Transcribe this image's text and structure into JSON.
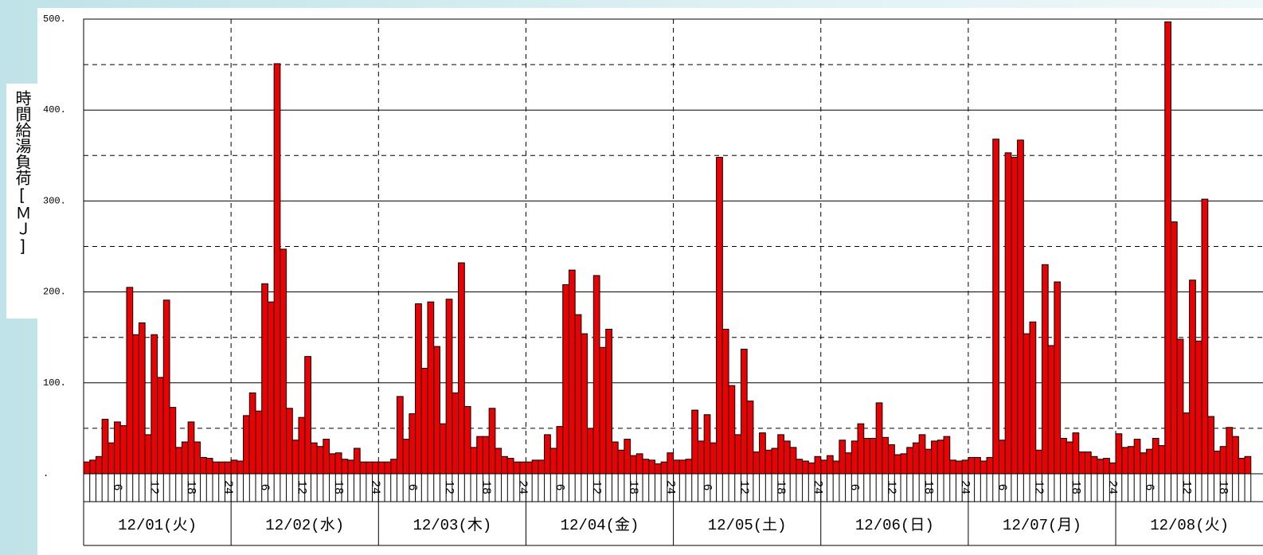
{
  "chart_data": {
    "type": "bar",
    "y_label": "時間給湯負荷[ＭＪ]",
    "days": [
      "12/01(火)",
      "12/02(水)",
      "12/03(木)",
      "12/04(金)",
      "12/05(土)",
      "12/06(日)",
      "12/07(月)",
      "12/08(火)"
    ],
    "categories": [
      null,
      null,
      null,
      null,
      null,
      "6",
      null,
      null,
      null,
      null,
      null,
      "12",
      null,
      null,
      null,
      null,
      null,
      "18",
      null,
      null,
      null,
      null,
      null,
      "24",
      null,
      null,
      null,
      null,
      null,
      "6",
      null,
      null,
      null,
      null,
      null,
      "12",
      null,
      null,
      null,
      null,
      null,
      "18",
      null,
      null,
      null,
      null,
      null,
      "24",
      null,
      null,
      null,
      null,
      null,
      "6",
      null,
      null,
      null,
      null,
      null,
      "12",
      null,
      null,
      null,
      null,
      null,
      "18",
      null,
      null,
      null,
      null,
      null,
      "24",
      null,
      null,
      null,
      null,
      null,
      "6",
      null,
      null,
      null,
      null,
      null,
      "12",
      null,
      null,
      null,
      null,
      null,
      "18",
      null,
      null,
      null,
      null,
      null,
      "24",
      null,
      null,
      null,
      null,
      null,
      "6",
      null,
      null,
      null,
      null,
      null,
      "12",
      null,
      null,
      null,
      null,
      null,
      "18",
      null,
      null,
      null,
      null,
      null,
      "24",
      null,
      null,
      null,
      null,
      null,
      "6",
      null,
      null,
      null,
      null,
      null,
      "12",
      null,
      null,
      null,
      null,
      null,
      "18",
      null,
      null,
      null,
      null,
      null,
      "24",
      null,
      null,
      null,
      null,
      null,
      "6",
      null,
      null,
      null,
      null,
      null,
      "12",
      null,
      null,
      null,
      null,
      null,
      "18",
      null,
      null,
      null,
      null,
      null,
      "24",
      null,
      null,
      null,
      null,
      null,
      "6",
      null,
      null,
      null,
      null,
      null,
      "12",
      null,
      null,
      null,
      null,
      null,
      "18",
      null,
      null,
      null,
      null
    ],
    "values": [
      13,
      15,
      19,
      60,
      34,
      57,
      53,
      205,
      153,
      166,
      43,
      153,
      106,
      191,
      73,
      29,
      35,
      57,
      35,
      18,
      17,
      13,
      13,
      13,
      15,
      14,
      64,
      89,
      69,
      209,
      189,
      451,
      247,
      72,
      37,
      62,
      129,
      34,
      30,
      38,
      22,
      23,
      16,
      15,
      28,
      13,
      13,
      13,
      13,
      13,
      16,
      85,
      38,
      66,
      187,
      116,
      189,
      140,
      55,
      192,
      89,
      232,
      74,
      29,
      41,
      41,
      72,
      28,
      19,
      17,
      13,
      13,
      13,
      15,
      15,
      43,
      28,
      52,
      208,
      224,
      175,
      154,
      50,
      218,
      139,
      159,
      35,
      26,
      38,
      20,
      22,
      16,
      15,
      11,
      13,
      23,
      15,
      15,
      16,
      70,
      36,
      65,
      34,
      348,
      159,
      97,
      43,
      137,
      80,
      24,
      45,
      26,
      28,
      43,
      36,
      29,
      16,
      14,
      12,
      19,
      15,
      20,
      14,
      37,
      23,
      36,
      55,
      39,
      39,
      78,
      40,
      32,
      21,
      22,
      29,
      34,
      43,
      27,
      36,
      37,
      41,
      15,
      14,
      15,
      18,
      18,
      14,
      18,
      368,
      37,
      353,
      348,
      367,
      154,
      167,
      26,
      230,
      141,
      211,
      39,
      35,
      45,
      24,
      24,
      19,
      16,
      17,
      12,
      44,
      29,
      30,
      38,
      23,
      27,
      39,
      31,
      497,
      277,
      148,
      67,
      213,
      146,
      302,
      63,
      25,
      30,
      51,
      41,
      17,
      19
    ],
    "color": "#ee0000",
    "ylim": [
      0,
      500
    ],
    "yticks": [
      {
        "value": 0,
        "label": "."
      },
      {
        "value": 100,
        "label": "100."
      },
      {
        "value": 200,
        "label": "200."
      },
      {
        "value": 300,
        "label": "300."
      },
      {
        "value": 400,
        "label": "400."
      },
      {
        "value": 500,
        "label": "500."
      }
    ],
    "minor_yticks": [
      50,
      150,
      250,
      350,
      450
    ],
    "grid": true
  }
}
